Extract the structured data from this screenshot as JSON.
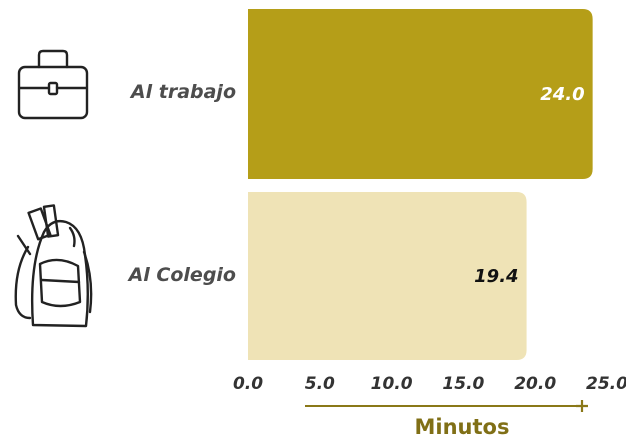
{
  "chart_data": {
    "type": "bar",
    "orientation": "horizontal",
    "categories": [
      "Al trabajo",
      "Al Colegio"
    ],
    "values": [
      24.0,
      19.4
    ],
    "value_labels": [
      "24.0",
      "19.4"
    ],
    "title": "",
    "xlabel": "Minutos",
    "ylabel": "",
    "xlim": [
      0,
      25
    ],
    "x_ticks": [
      "0.0",
      "5.0",
      "10.0",
      "15.0",
      "20.0",
      "25.0"
    ],
    "grid": false,
    "legend": "none"
  },
  "icons": [
    "briefcase-icon",
    "backpack-icon"
  ],
  "colors": {
    "bar_work": "#b59e18",
    "bar_school": "#efe3b6",
    "value_on_dark": "#ffffff",
    "value_on_light": "#111111",
    "axis_line": "#8a7818",
    "axis_title": "#806f16"
  }
}
